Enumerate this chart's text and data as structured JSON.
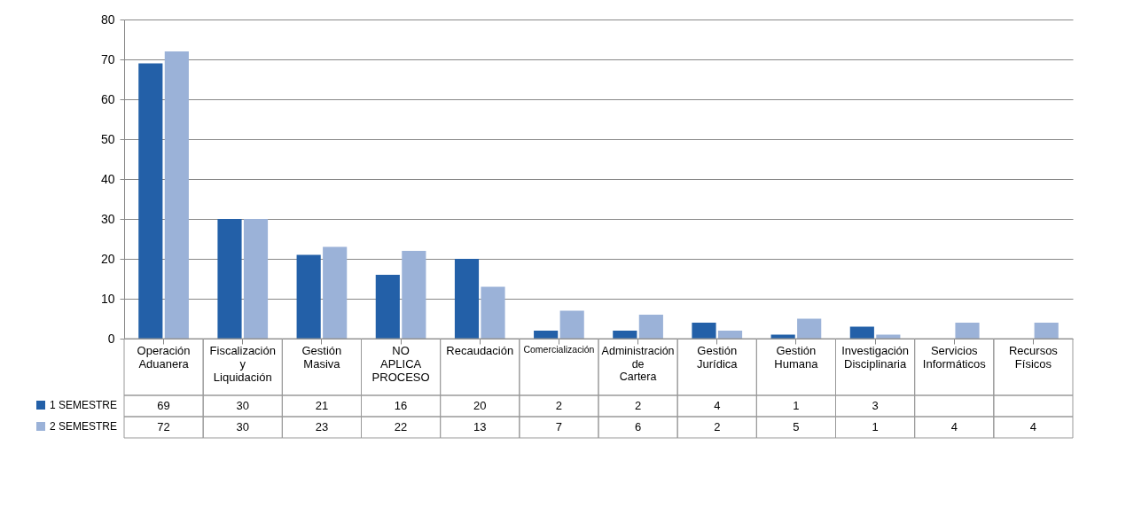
{
  "chart_data": {
    "type": "bar",
    "categories": [
      "Operación Aduanera",
      "Fiscalización y Liquidación",
      "Gestión Masiva",
      "NO APLICA PROCESO",
      "Recaudación",
      "Comercialización",
      "Administración de Cartera",
      "Gestión Jurídica",
      "Gestión Humana",
      "Investigación Disciplinaria",
      "Servicios Informáticos",
      "Recursos Físicos"
    ],
    "series": [
      {
        "name": "1 SEMESTRE",
        "color": "#2360a8",
        "values": [
          69,
          30,
          21,
          16,
          20,
          2,
          2,
          4,
          1,
          3,
          null,
          null
        ]
      },
      {
        "name": "2 SEMESTRE",
        "color": "#9bb2d8",
        "values": [
          72,
          30,
          23,
          22,
          13,
          7,
          6,
          2,
          5,
          1,
          4,
          4
        ]
      }
    ],
    "ylim": [
      0,
      80
    ],
    "yticks": [
      0,
      10,
      20,
      30,
      40,
      50,
      60,
      70,
      80
    ],
    "grid": "y",
    "legend": "bottom left",
    "data_labels": true
  }
}
